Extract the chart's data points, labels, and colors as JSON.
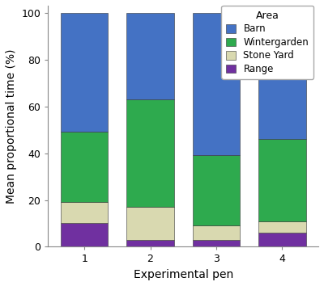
{
  "categories": [
    "1",
    "2",
    "3",
    "4"
  ],
  "series": {
    "Range": [
      10,
      3,
      3,
      6
    ],
    "Stone Yard": [
      9,
      14,
      6,
      5
    ],
    "Wintergarden": [
      30,
      46,
      30,
      35
    ],
    "Barn": [
      51,
      37,
      61,
      54
    ]
  },
  "colors": {
    "Barn": "#4472c4",
    "Wintergarden": "#2eaa4e",
    "Stone Yard": "#d9d9b0",
    "Range": "#7030a0"
  },
  "order": [
    "Range",
    "Stone Yard",
    "Wintergarden",
    "Barn"
  ],
  "legend_order": [
    "Barn",
    "Wintergarden",
    "Stone Yard",
    "Range"
  ],
  "xlabel": "Experimental pen",
  "ylabel": "Mean proportional time (%)",
  "ylim": [
    0,
    103
  ],
  "yticks": [
    0,
    20,
    40,
    60,
    80,
    100
  ],
  "legend_title": "Area",
  "background_color": "#ffffff",
  "bar_width": 0.72,
  "font_size_label": 10,
  "font_size_tick": 9,
  "font_size_legend": 8.5
}
